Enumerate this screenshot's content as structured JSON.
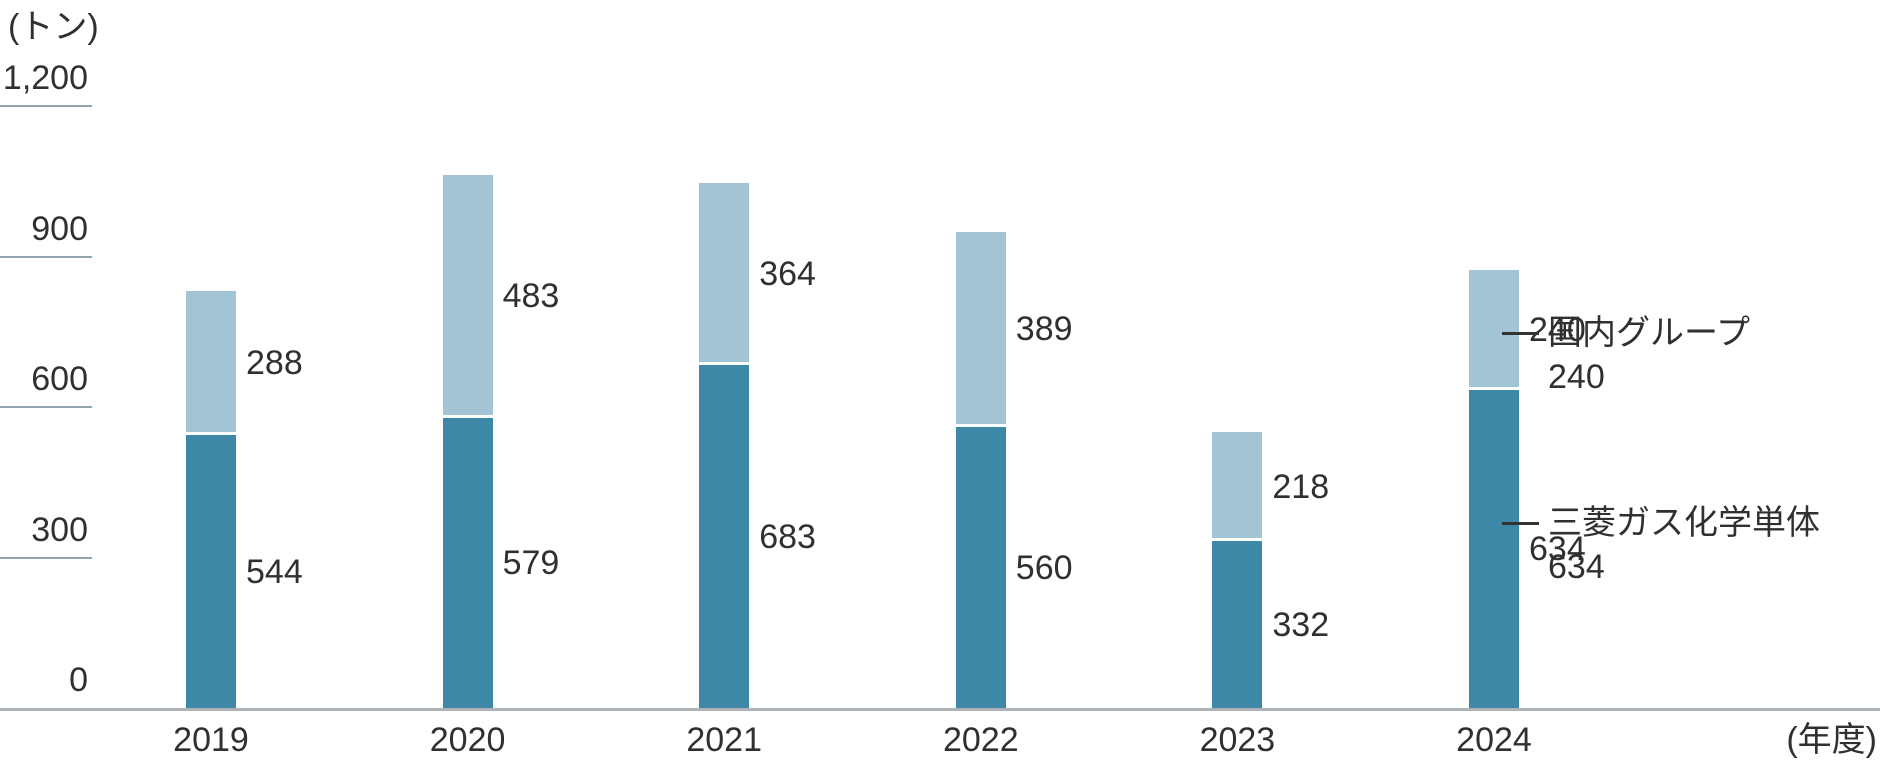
{
  "colors": {
    "parent_series": "#3d87a7",
    "group_series": "#a1c5d4",
    "axis_line": "#adb3b8",
    "tick_line": "#94a4ae",
    "text": "#303030",
    "legend_dash": "#333333",
    "background": "#ffffff"
  },
  "chart_data": {
    "type": "bar",
    "stacked": true,
    "title": "",
    "ylabel": "(トン)",
    "xlabel": "(年度)",
    "ylim": [
      0,
      1200
    ],
    "grid": "left-ticks-only",
    "legend_position": "right",
    "categories": [
      "2019",
      "2020",
      "2021",
      "2022",
      "2023",
      "2024"
    ],
    "series": [
      {
        "name": "三菱ガス化学単体",
        "role": "parent",
        "stack_order": "bottom",
        "values": [
          544,
          579,
          683,
          560,
          332,
          634
        ]
      },
      {
        "name": "国内グループ",
        "role": "group",
        "stack_order": "top",
        "values": [
          288,
          483,
          364,
          389,
          218,
          240
        ]
      }
    ],
    "yticks": [
      {
        "label": "0",
        "value": 0
      },
      {
        "label": "300",
        "value": 300
      },
      {
        "label": "600",
        "value": 600
      },
      {
        "label": "900",
        "value": 900
      },
      {
        "label": "1,200",
        "value": 1200
      }
    ],
    "legend": [
      {
        "label": "国内グループ",
        "value_label": "240",
        "role": "group"
      },
      {
        "label": "三菱ガス化学単体",
        "value_label": "634",
        "role": "parent"
      }
    ]
  }
}
